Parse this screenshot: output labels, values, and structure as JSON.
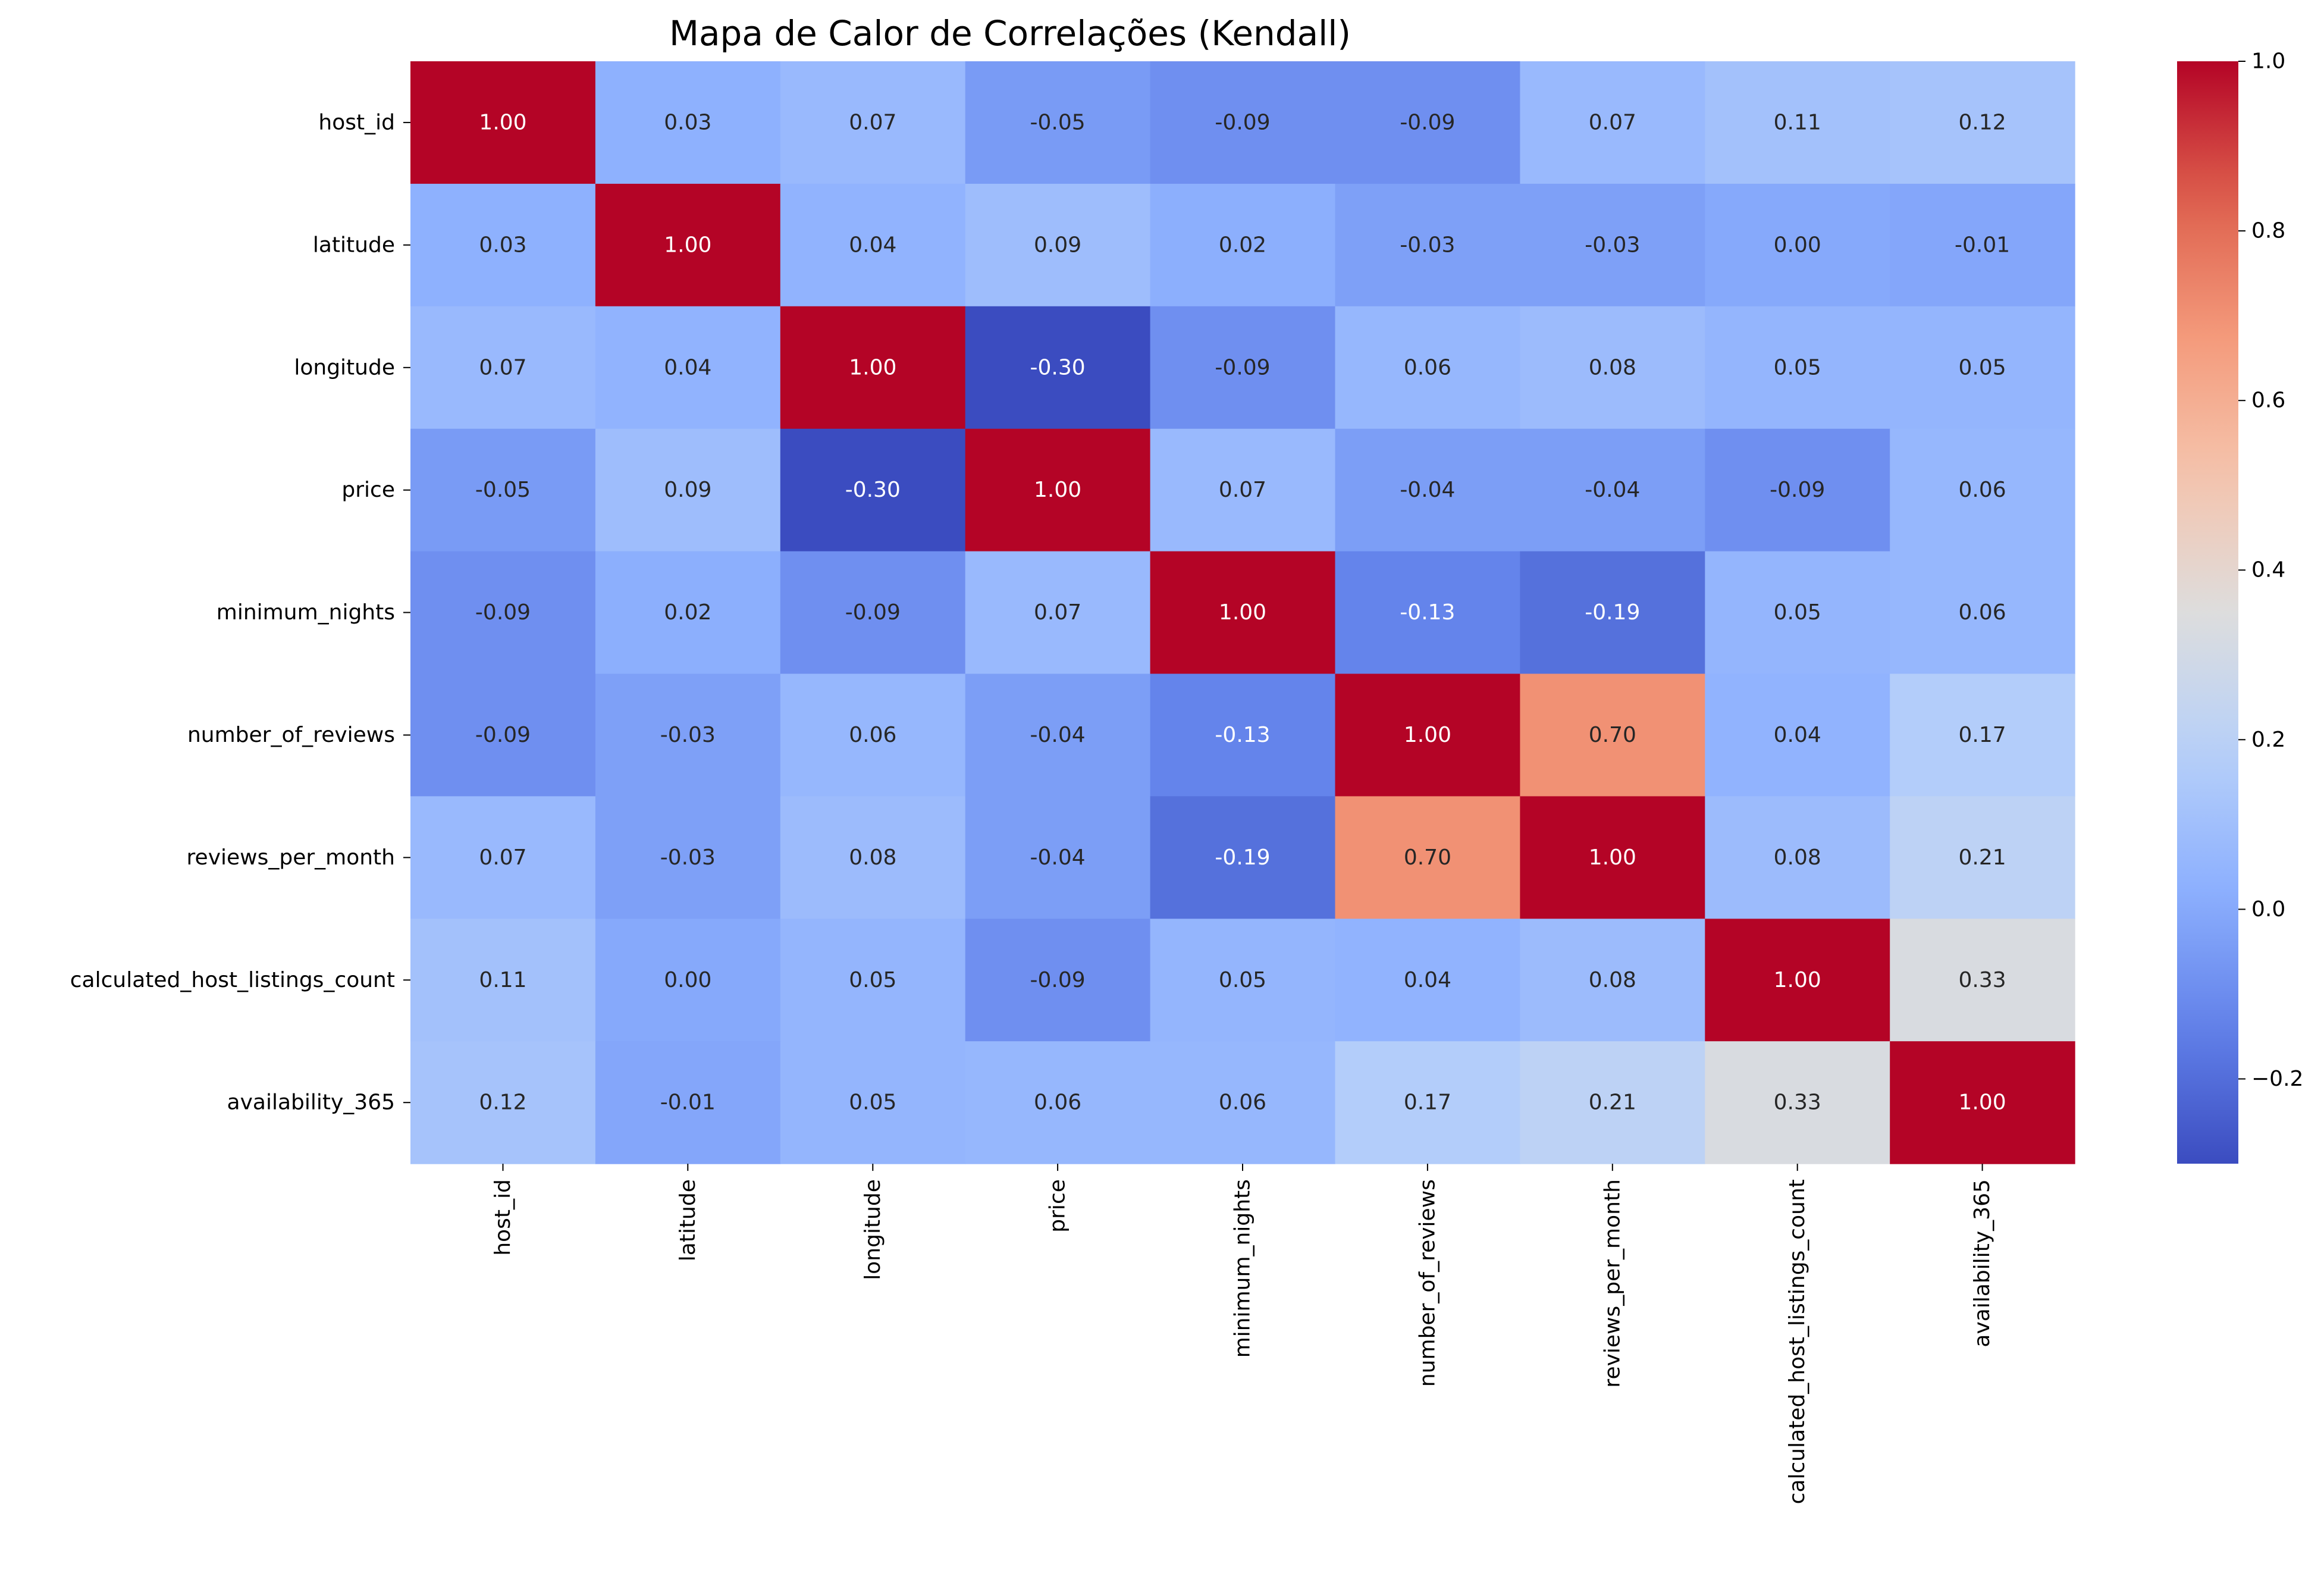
{
  "chart_data": {
    "type": "heatmap",
    "title": "Mapa de Calor de Correlações (Kendall)",
    "xlabel": "",
    "ylabel": "",
    "colormap": "coolwarm",
    "rows": [
      "host_id",
      "latitude",
      "longitude",
      "price",
      "minimum_nights",
      "number_of_reviews",
      "reviews_per_month",
      "calculated_host_listings_count",
      "availability_365"
    ],
    "columns": [
      "host_id",
      "latitude",
      "longitude",
      "price",
      "minimum_nights",
      "number_of_reviews",
      "reviews_per_month",
      "calculated_host_listings_count",
      "availability_365"
    ],
    "values": [
      [
        1.0,
        0.03,
        0.07,
        -0.05,
        -0.09,
        -0.09,
        0.07,
        0.11,
        0.12
      ],
      [
        0.03,
        1.0,
        0.04,
        0.09,
        0.02,
        -0.03,
        -0.03,
        0.0,
        -0.01
      ],
      [
        0.07,
        0.04,
        1.0,
        -0.3,
        -0.09,
        0.06,
        0.08,
        0.05,
        0.05
      ],
      [
        -0.05,
        0.09,
        -0.3,
        1.0,
        0.07,
        -0.04,
        -0.04,
        -0.09,
        0.06
      ],
      [
        -0.09,
        0.02,
        -0.09,
        0.07,
        1.0,
        -0.13,
        -0.19,
        0.05,
        0.06
      ],
      [
        -0.09,
        -0.03,
        0.06,
        -0.04,
        -0.13,
        1.0,
        0.7,
        0.04,
        0.17
      ],
      [
        0.07,
        -0.03,
        0.08,
        -0.04,
        -0.19,
        0.7,
        1.0,
        0.08,
        0.21
      ],
      [
        0.11,
        0.0,
        0.05,
        -0.09,
        0.05,
        0.04,
        0.08,
        1.0,
        0.33
      ],
      [
        0.12,
        -0.01,
        0.05,
        0.06,
        0.06,
        0.17,
        0.21,
        0.33,
        1.0
      ]
    ],
    "value_format": "0.00",
    "colorbar": {
      "vmin": -0.3,
      "vmax": 1.0,
      "ticks": [
        -0.2,
        0.0,
        0.2,
        0.4,
        0.6,
        0.8,
        1.0
      ],
      "tick_labels": [
        "−0.2",
        "0.0",
        "0.2",
        "0.4",
        "0.6",
        "0.8",
        "1.0"
      ]
    },
    "grid": false,
    "legend": "colorbar-right"
  }
}
